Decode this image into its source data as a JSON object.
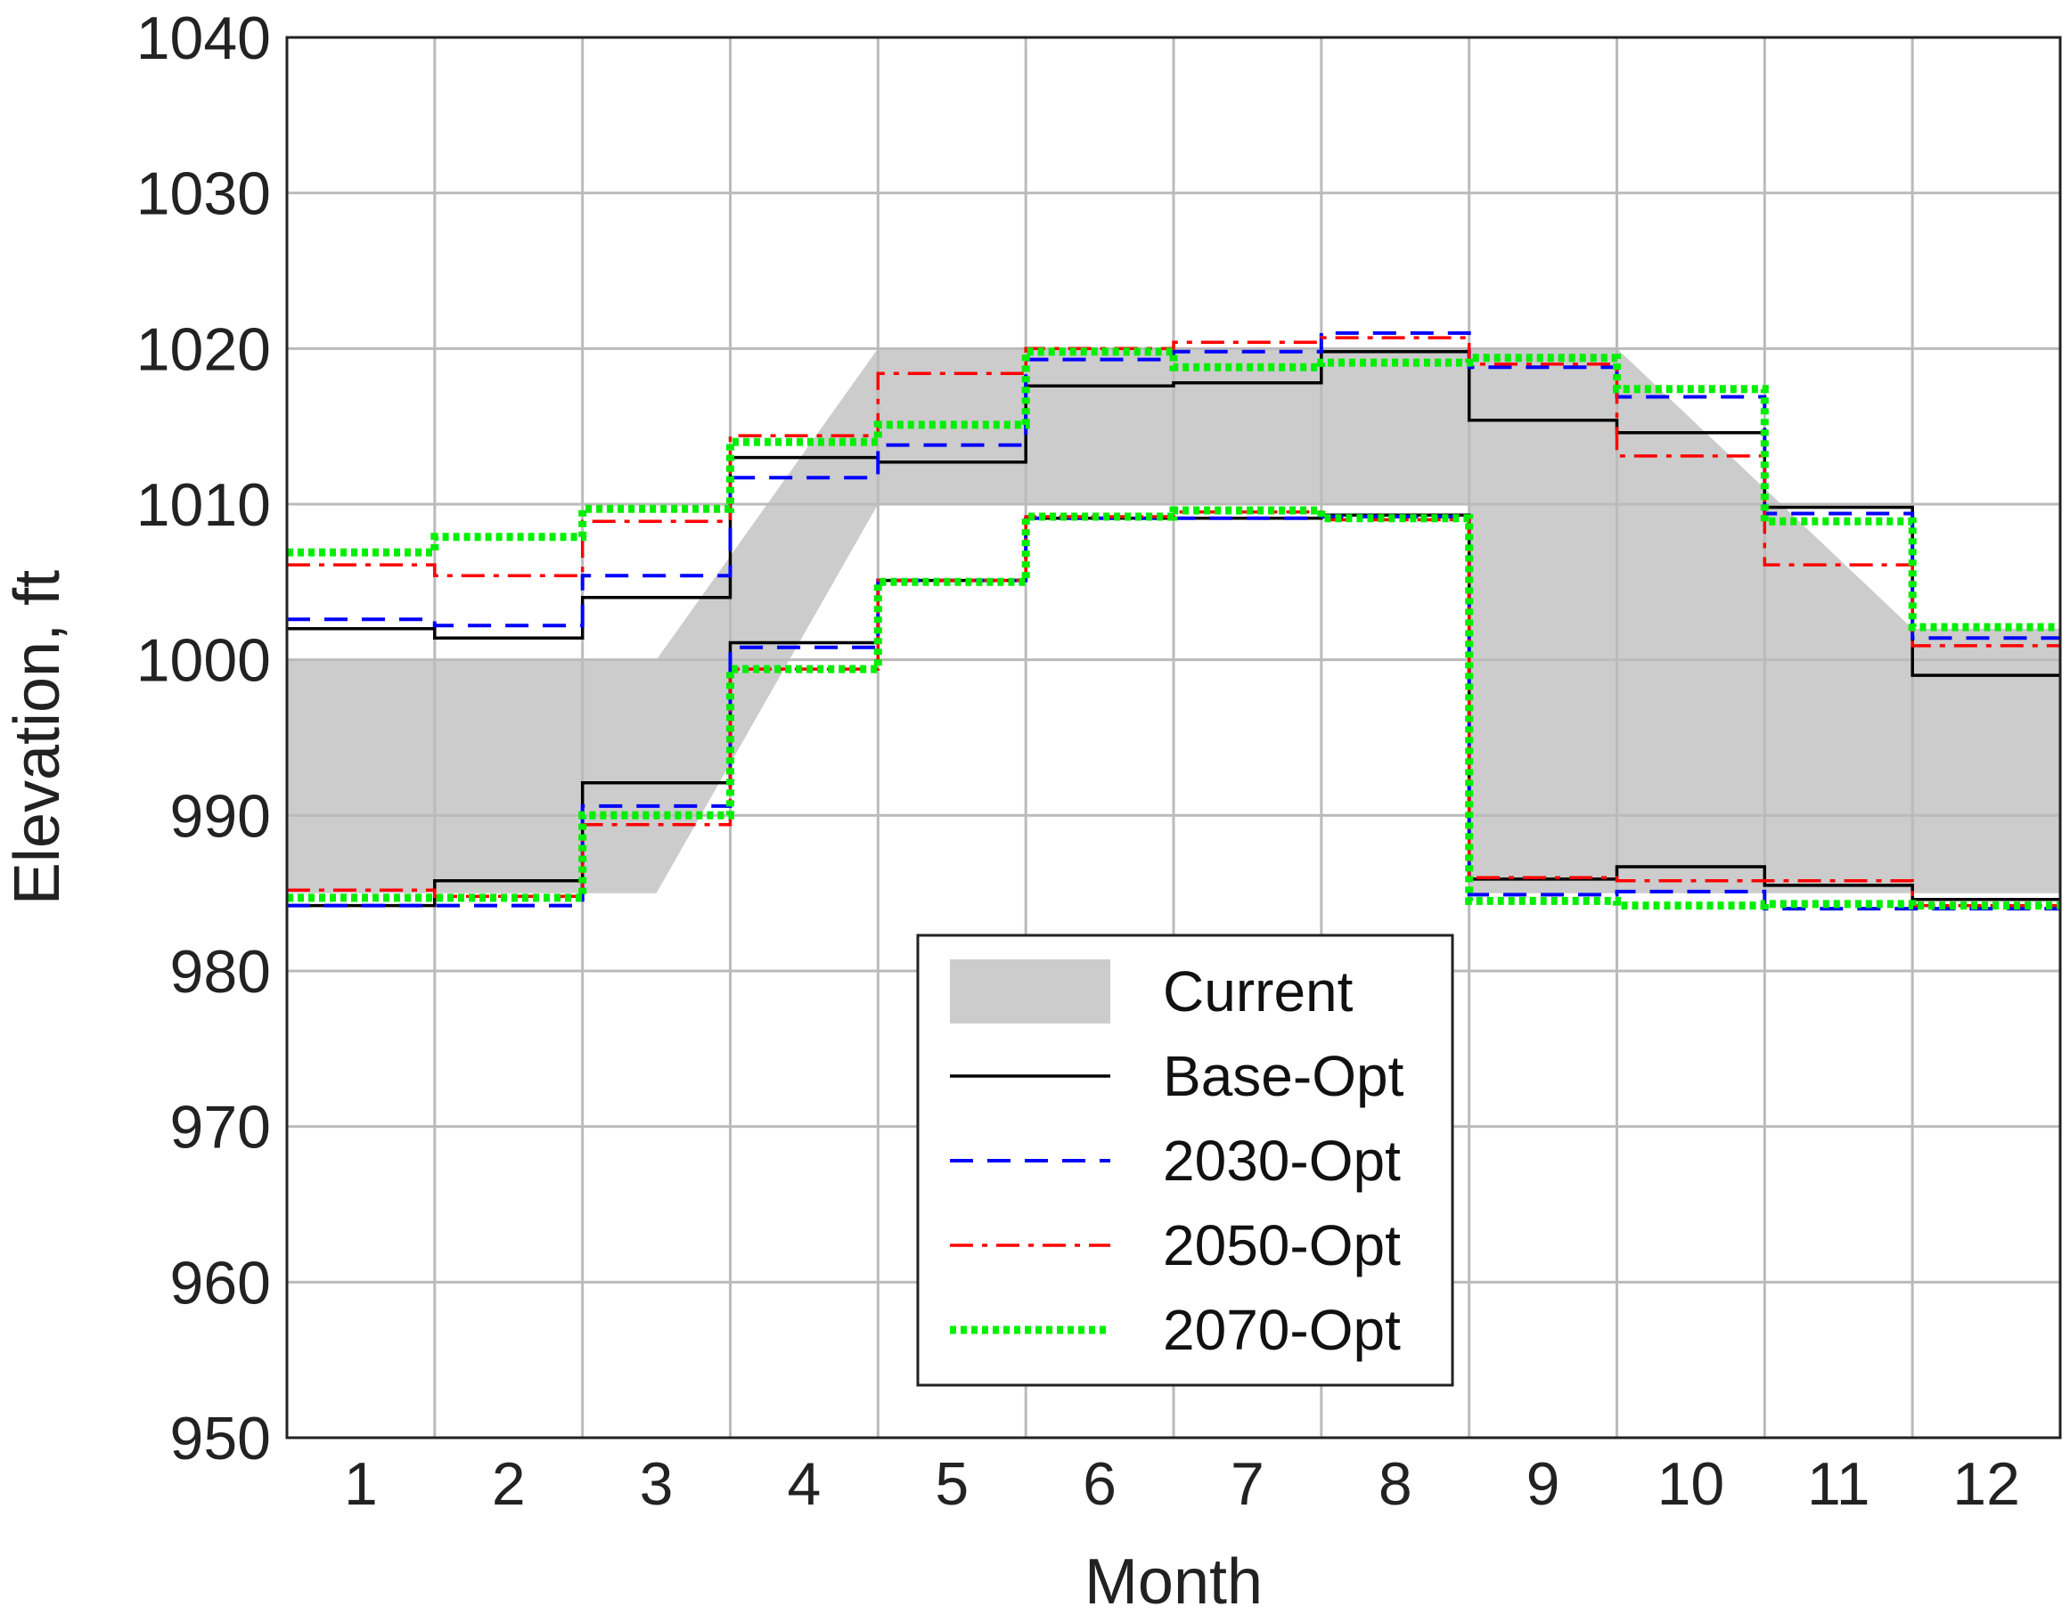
{
  "chart_data": {
    "type": "line",
    "xlabel": "Month",
    "ylabel": "Elevation, ft",
    "xlim": [
      0.5,
      12.5
    ],
    "ylim": [
      950,
      1040
    ],
    "x_ticks": [
      1,
      2,
      3,
      4,
      5,
      6,
      7,
      8,
      9,
      10,
      11,
      12
    ],
    "y_ticks": [
      950,
      960,
      970,
      980,
      990,
      1000,
      1010,
      1020,
      1030,
      1040
    ],
    "grid": true,
    "legend_position": "lower-center",
    "current_band": {
      "name": "Current",
      "color": "#cccccc",
      "upper": [
        [
          0.5,
          1000
        ],
        [
          3.0,
          1000
        ],
        [
          4.5,
          1020
        ],
        [
          9.5,
          1020
        ],
        [
          11.5,
          1002
        ],
        [
          12.5,
          1002
        ]
      ],
      "lower": [
        [
          0.5,
          985
        ],
        [
          3.0,
          985
        ],
        [
          4.5,
          1010
        ],
        [
          8.5,
          1010
        ],
        [
          8.5,
          985
        ],
        [
          12.5,
          985
        ]
      ]
    },
    "series": [
      {
        "name": "Base-Opt",
        "color": "#000000",
        "style": "solid",
        "upper": [
          1002.0,
          1001.4,
          1004.0,
          1013.0,
          1012.7,
          1017.6,
          1017.8,
          1019.8,
          1015.4,
          1014.6,
          1009.8,
          999.0
        ],
        "lower": [
          984.2,
          985.8,
          992.1,
          1001.1,
          1005.1,
          1009.1,
          1009.1,
          1009.3,
          985.9,
          986.7,
          985.5,
          984.6
        ]
      },
      {
        "name": "2030-Opt",
        "color": "#0000ff",
        "style": "dashed",
        "upper": [
          1002.6,
          1002.2,
          1005.4,
          1011.7,
          1013.8,
          1019.3,
          1019.8,
          1021.0,
          1018.8,
          1016.9,
          1009.4,
          1001.4
        ],
        "lower": [
          984.2,
          984.2,
          990.6,
          1000.8,
          1005.1,
          1009.1,
          1009.1,
          1009.2,
          984.9,
          985.1,
          984.0,
          984.0
        ]
      },
      {
        "name": "2050-Opt",
        "color": "#ff0000",
        "style": "dashdot",
        "upper": [
          1006.1,
          1005.4,
          1008.9,
          1014.4,
          1018.4,
          1020.0,
          1020.4,
          1020.7,
          1019.0,
          1013.1,
          1006.1,
          1000.9
        ],
        "lower": [
          985.2,
          984.8,
          989.4,
          999.4,
          1005.1,
          1009.2,
          1009.5,
          1009.0,
          986.0,
          985.8,
          985.8,
          984.2
        ]
      },
      {
        "name": "2070-Opt",
        "color": "#00ee00",
        "style": "dotted",
        "upper": [
          1006.9,
          1007.9,
          1009.7,
          1014.0,
          1015.1,
          1019.8,
          1018.8,
          1019.1,
          1019.4,
          1017.4,
          1008.9,
          1002.1
        ],
        "lower": [
          984.7,
          984.7,
          990.0,
          999.4,
          1005.0,
          1009.2,
          1009.6,
          1009.1,
          984.5,
          984.2,
          984.3,
          984.2
        ]
      }
    ]
  }
}
